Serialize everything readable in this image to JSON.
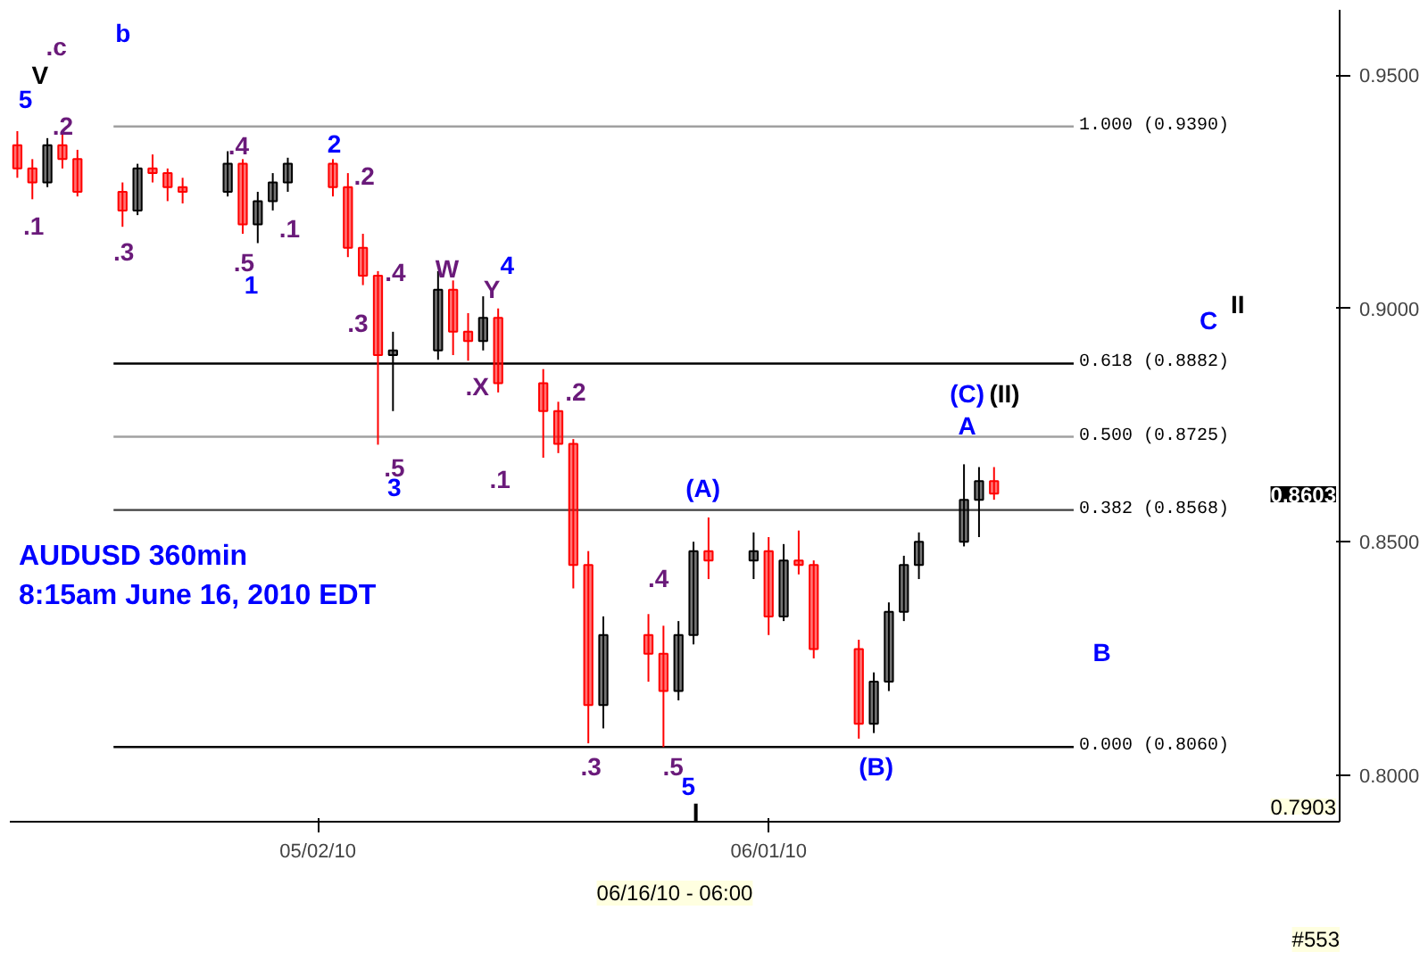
{
  "chart_data": {
    "type": "candlestick",
    "title": "AUDUSD 360min",
    "subtitle": "8:15am June 16, 2010 EDT",
    "x": [
      "2010-04-12",
      "2010-04-13",
      "2010-04-14",
      "2010-04-15",
      "2010-04-16",
      "2010-04-19",
      "2010-04-20",
      "2010-04-21",
      "2010-04-22",
      "2010-04-23",
      "2010-04-26",
      "2010-04-27",
      "2010-04-28",
      "2010-04-29",
      "2010-04-30",
      "2010-05-03",
      "2010-05-04",
      "2010-05-05",
      "2010-05-06",
      "2010-05-07",
      "2010-05-10",
      "2010-05-11",
      "2010-05-12",
      "2010-05-13",
      "2010-05-14",
      "2010-05-17",
      "2010-05-18",
      "2010-05-19",
      "2010-05-20",
      "2010-05-21",
      "2010-05-24",
      "2010-05-25",
      "2010-05-26",
      "2010-05-27",
      "2010-05-28",
      "2010-05-31",
      "2010-06-01",
      "2010-06-02",
      "2010-06-03",
      "2010-06-04",
      "2010-06-07",
      "2010-06-08",
      "2010-06-09",
      "2010-06-10",
      "2010-06-11",
      "2010-06-14",
      "2010-06-15",
      "2010-06-16"
    ],
    "ohlc": [
      [
        0.935,
        0.938,
        0.928,
        0.93
      ],
      [
        0.93,
        0.932,
        0.9234,
        0.927
      ],
      [
        0.927,
        0.9365,
        0.926,
        0.935
      ],
      [
        0.935,
        0.9382,
        0.93,
        0.932
      ],
      [
        0.932,
        0.934,
        0.924,
        0.925
      ],
      [
        0.925,
        0.927,
        0.9175,
        0.921
      ],
      [
        0.921,
        0.931,
        0.92,
        0.93
      ],
      [
        0.93,
        0.933,
        0.927,
        0.929
      ],
      [
        0.929,
        0.93,
        0.923,
        0.926
      ],
      [
        0.926,
        0.928,
        0.9225,
        0.925
      ],
      [
        0.925,
        0.9337,
        0.924,
        0.931
      ],
      [
        0.931,
        0.932,
        0.916,
        0.918
      ],
      [
        0.918,
        0.925,
        0.914,
        0.923
      ],
      [
        0.923,
        0.929,
        0.921,
        0.927
      ],
      [
        0.927,
        0.9323,
        0.925,
        0.931
      ],
      [
        0.931,
        0.932,
        0.924,
        0.926
      ],
      [
        0.926,
        0.929,
        0.911,
        0.913
      ],
      [
        0.913,
        0.916,
        0.905,
        0.907
      ],
      [
        0.907,
        0.908,
        0.8708,
        0.89
      ],
      [
        0.89,
        0.895,
        0.878,
        0.891
      ],
      [
        0.891,
        0.908,
        0.889,
        0.904
      ],
      [
        0.904,
        0.906,
        0.89,
        0.895
      ],
      [
        0.895,
        0.899,
        0.8888,
        0.893
      ],
      [
        0.893,
        0.9026,
        0.891,
        0.898
      ],
      [
        0.898,
        0.9,
        0.882,
        0.884
      ],
      [
        0.884,
        0.887,
        0.868,
        0.878
      ],
      [
        0.878,
        0.88,
        0.869,
        0.871
      ],
      [
        0.871,
        0.872,
        0.84,
        0.845
      ],
      [
        0.845,
        0.848,
        0.8068,
        0.815
      ],
      [
        0.815,
        0.834,
        0.81,
        0.83
      ],
      [
        0.83,
        0.8345,
        0.82,
        0.826
      ],
      [
        0.826,
        0.832,
        0.806,
        0.818
      ],
      [
        0.818,
        0.833,
        0.816,
        0.83
      ],
      [
        0.83,
        0.85,
        0.828,
        0.848
      ],
      [
        0.848,
        0.8552,
        0.842,
        0.846
      ],
      [
        0.846,
        0.852,
        0.842,
        0.848
      ],
      [
        0.848,
        0.851,
        0.83,
        0.834
      ],
      [
        0.834,
        0.8495,
        0.833,
        0.846
      ],
      [
        0.846,
        0.8524,
        0.843,
        0.845
      ],
      [
        0.845,
        0.846,
        0.825,
        0.827
      ],
      [
        0.827,
        0.829,
        0.8078,
        0.811
      ],
      [
        0.811,
        0.822,
        0.809,
        0.82
      ],
      [
        0.82,
        0.837,
        0.818,
        0.835
      ],
      [
        0.835,
        0.847,
        0.833,
        0.845
      ],
      [
        0.845,
        0.852,
        0.842,
        0.85
      ],
      [
        0.85,
        0.8666,
        0.849,
        0.859
      ],
      [
        0.859,
        0.866,
        0.851,
        0.863
      ],
      [
        0.863,
        0.866,
        0.859,
        0.8603
      ]
    ],
    "colors": [
      "#ff0000",
      "#ff0000",
      "#000000",
      "#ff0000",
      "#ff0000",
      "#ff0000",
      "#000000",
      "#ff0000",
      "#ff0000",
      "#ff0000",
      "#000000",
      "#ff0000",
      "#000000",
      "#000000",
      "#000000",
      "#ff0000",
      "#ff0000",
      "#ff0000",
      "#ff0000",
      "#000000",
      "#000000",
      "#ff0000",
      "#ff0000",
      "#000000",
      "#ff0000",
      "#ff0000",
      "#ff0000",
      "#ff0000",
      "#ff0000",
      "#000000",
      "#ff0000",
      "#ff0000",
      "#000000",
      "#000000",
      "#ff0000",
      "#000000",
      "#ff0000",
      "#000000",
      "#ff0000",
      "#ff0000",
      "#ff0000",
      "#000000",
      "#000000",
      "#000000",
      "#000000",
      "#000000",
      "#000000",
      "#ff0000"
    ],
    "xlim": [
      "2010-04-11T12:00",
      "2010-07-09"
    ],
    "xticks": [
      {
        "value": "2010-05-02",
        "label": "05/02/10"
      },
      {
        "value": "2010-06-01",
        "label": "06/01/10"
      }
    ],
    "ylim": [
      0.79,
      0.964
    ],
    "yticks": [
      {
        "value": 0.8,
        "label": "0.8000"
      },
      {
        "value": 0.85,
        "label": "0.8500"
      },
      {
        "value": 0.9,
        "label": "0.9000"
      },
      {
        "value": 0.95,
        "label": "0.9500"
      }
    ],
    "ref_lines": [
      {
        "axis": "y",
        "value": 0.939,
        "label": "1.000 (0.9390)",
        "color": "#a0a0a0"
      },
      {
        "axis": "y",
        "value": 0.8882,
        "label": "0.618 (0.8882)",
        "color": "#000000"
      },
      {
        "axis": "y",
        "value": 0.8725,
        "label": "0.500 (0.8725)",
        "color": "#a0a0a0"
      },
      {
        "axis": "y",
        "value": 0.8568,
        "label": "0.382 (0.8568)",
        "color": "#404040"
      },
      {
        "axis": "y",
        "value": 0.806,
        "label": "0.000 (0.8060)",
        "color": "#000000"
      }
    ],
    "annotations": [
      "5",
      "V",
      ".c",
      "b",
      ".1",
      ".2",
      ".3",
      ".4",
      ".5",
      "1",
      ".1",
      "2",
      ".2",
      ".3",
      ".4",
      "W",
      ".5",
      "3",
      ".X",
      "Y",
      "4",
      ".1",
      ".2",
      ".3",
      ".4",
      ".5",
      "5",
      "I",
      "(A)",
      "(B)",
      "(C)",
      "(II)",
      "A",
      "B",
      "C",
      "II",
      "0.8603",
      "06/16/10 - 06:00",
      "0.7903",
      "#553"
    ]
  }
}
